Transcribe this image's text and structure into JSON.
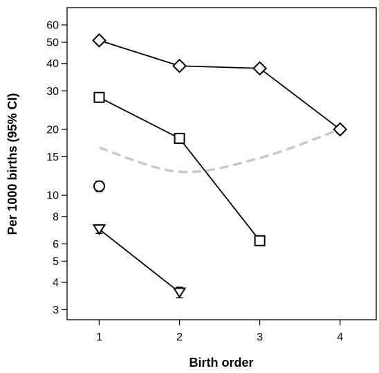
{
  "chart_data": {
    "type": "line",
    "title": "",
    "xlabel": "Birth order",
    "ylabel": "Per 1000 births (95% CI)",
    "y_scale": "log",
    "xlim": [
      0.6,
      4.45
    ],
    "ylim": [
      2.7,
      72
    ],
    "x_ticks": [
      1,
      2,
      3,
      4
    ],
    "y_ticks": [
      3,
      4,
      5,
      6,
      8,
      10,
      15,
      20,
      30,
      40,
      50,
      60
    ],
    "grid": false,
    "legend": "none",
    "series": [
      {
        "marker": "diamond",
        "line_color": "#000000",
        "x": [
          1,
          2,
          3,
          4
        ],
        "y": [
          51,
          39,
          38,
          20
        ],
        "ci_low": [
          49,
          37.5,
          36.5,
          19.2
        ],
        "ci_high": [
          53,
          40.5,
          39.5,
          20.8
        ]
      },
      {
        "marker": "square",
        "line_color": "#000000",
        "x": [
          1,
          2,
          3
        ],
        "y": [
          28,
          18.2,
          6.2
        ],
        "ci_low": [
          27,
          17.3,
          5.9
        ],
        "ci_high": [
          29,
          19.1,
          6.5
        ]
      },
      {
        "marker": "circle",
        "line_color": "#000000",
        "x": [
          1
        ],
        "y": [
          11
        ],
        "ci_low": [
          10.4
        ],
        "ci_high": [
          11.6
        ]
      },
      {
        "marker": "triangle-down",
        "line_color": "#000000",
        "x": [
          1,
          2
        ],
        "y": [
          7,
          3.6
        ],
        "ci_low": [
          6.7,
          3.4
        ],
        "ci_high": [
          7.3,
          3.8
        ]
      },
      {
        "marker": "none",
        "line_color": "#c8c8c8",
        "dashed": true,
        "x": [
          1,
          2,
          3,
          4
        ],
        "y": [
          16.5,
          12.8,
          14.8,
          20
        ]
      }
    ]
  }
}
